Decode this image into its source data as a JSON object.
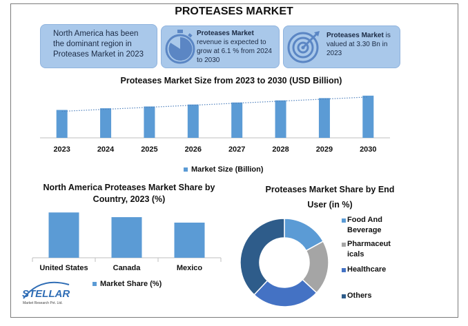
{
  "title": "PROTEASES MARKET",
  "info_boxes": [
    {
      "text": "North America has been the dominant region in Proteases Market in 2023"
    },
    {
      "bold": "Proteases Market",
      "text": " revenue is expected to grow at 6.1 % from 2024 to 2030",
      "icon": "stopwatch-icon"
    },
    {
      "bold": "Proteases Market",
      "text": " is valued at 3.30 Bn in 2023",
      "icon": "target-icon"
    }
  ],
  "colors": {
    "bar": "#5b9bd5",
    "box": "#a9c8ea",
    "pie": [
      "#5b9bd5",
      "#a5a5a5",
      "#4472c4",
      "#2e5c8a"
    ]
  },
  "chart_data": [
    {
      "type": "bar",
      "title": "Proteases Market Size from 2023 to 2030 (USD Billion)",
      "categories": [
        "2023",
        "2024",
        "2025",
        "2026",
        "2027",
        "2028",
        "2029",
        "2030"
      ],
      "series": [
        {
          "name": "Market Size (Billion)",
          "values": [
            3.3,
            3.5,
            3.71,
            3.94,
            4.18,
            4.43,
            4.7,
            4.99
          ]
        }
      ],
      "trendline": true,
      "ylim": [
        0,
        5.3
      ]
    },
    {
      "type": "bar",
      "title": "North America Proteases Market  Share by Country, 2023 (%)",
      "categories": [
        "United States",
        "Canada",
        "Mexico"
      ],
      "series": [
        {
          "name": "Market Share (%)",
          "values": [
            58,
            52,
            45
          ]
        }
      ],
      "ylim": [
        0,
        60
      ]
    },
    {
      "type": "pie",
      "title": "Proteases Market Share by End User  (in %)",
      "labels": [
        "Food And Beverage",
        "Pharmaceuticals",
        "Healthcare",
        "Others"
      ],
      "legend_lines": [
        [
          "Food And",
          "Beverage"
        ],
        [
          "Pharmaceut",
          "icals"
        ],
        [
          "Healthcare"
        ],
        [
          "Others"
        ]
      ],
      "values": [
        17,
        20,
        25,
        38
      ],
      "legend": "right"
    }
  ],
  "logo": {
    "name": "STELLAR",
    "sub": "Market Research Pvt. Ltd."
  }
}
